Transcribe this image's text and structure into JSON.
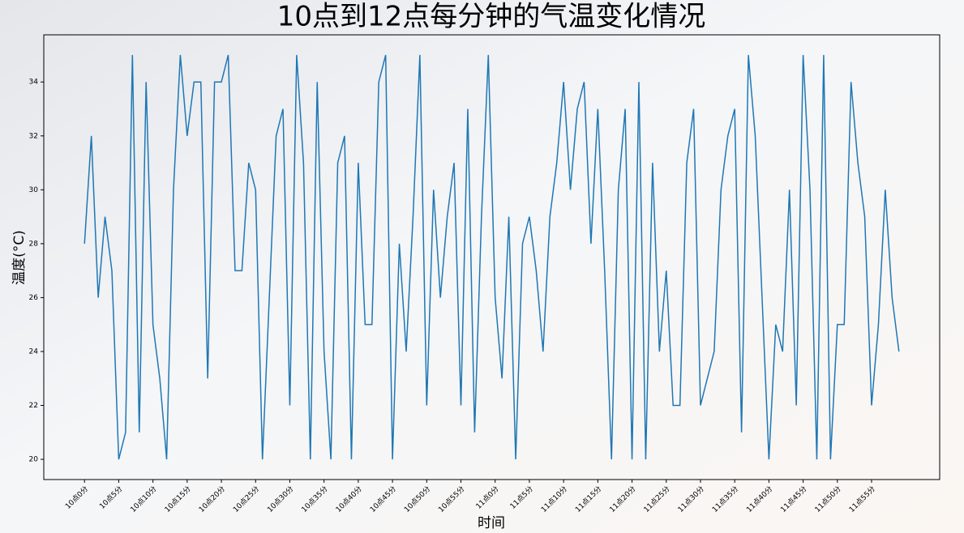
{
  "chart_data": {
    "type": "line",
    "title": "10点到12点每分钟的气温变化情况",
    "xlabel": "时间",
    "ylabel": "温度(°C)",
    "categories": [
      "10点0分",
      null,
      null,
      null,
      null,
      "10点5分",
      null,
      null,
      null,
      null,
      "10点10分",
      null,
      null,
      null,
      null,
      "10点15分",
      null,
      null,
      null,
      null,
      "10点20分",
      null,
      null,
      null,
      null,
      "10点25分",
      null,
      null,
      null,
      null,
      "10点30分",
      null,
      null,
      null,
      null,
      "10点35分",
      null,
      null,
      null,
      null,
      "10点40分",
      null,
      null,
      null,
      null,
      "10点45分",
      null,
      null,
      null,
      null,
      "10点50分",
      null,
      null,
      null,
      null,
      "10点55分",
      null,
      null,
      null,
      null,
      "11点0分",
      null,
      null,
      null,
      null,
      "11点5分",
      null,
      null,
      null,
      null,
      "11点10分",
      null,
      null,
      null,
      null,
      "11点15分",
      null,
      null,
      null,
      null,
      "11点20分",
      null,
      null,
      null,
      null,
      "11点25分",
      null,
      null,
      null,
      null,
      "11点30分",
      null,
      null,
      null,
      null,
      "11点35分",
      null,
      null,
      null,
      null,
      "11点40分",
      null,
      null,
      null,
      null,
      "11点45分",
      null,
      null,
      null,
      null,
      "11点50分",
      null,
      null,
      null,
      null,
      "11点55分",
      null,
      null,
      null,
      null
    ],
    "series": [
      {
        "color": "#1f77b4",
        "values": [
          28,
          32,
          26,
          29,
          27,
          20,
          21,
          35,
          21,
          34,
          25,
          23,
          20,
          30,
          35,
          32,
          34,
          34,
          23,
          34,
          34,
          35,
          27,
          27,
          31,
          30,
          20,
          26,
          32,
          33,
          22,
          35,
          31,
          20,
          34,
          24,
          20,
          31,
          32,
          20,
          31,
          25,
          25,
          34,
          35,
          20,
          28,
          24,
          29,
          35,
          22,
          30,
          26,
          29,
          31,
          22,
          33,
          21,
          29,
          35,
          26,
          23,
          29,
          20,
          28,
          29,
          27,
          24,
          29,
          31,
          34,
          30,
          33,
          34,
          28,
          33,
          27,
          20,
          30,
          33,
          20,
          34,
          20,
          31,
          24,
          27,
          22,
          22,
          31,
          33,
          22,
          23,
          24,
          30,
          32,
          33,
          21,
          35,
          32,
          26,
          20,
          25,
          24,
          30,
          22,
          35,
          30,
          20,
          35,
          20,
          25,
          25,
          34,
          31,
          29,
          22,
          25,
          30,
          26,
          24
        ]
      }
    ],
    "ylim": [
      19.25,
      35.75
    ],
    "yticks": [
      20,
      22,
      24,
      26,
      28,
      30,
      32,
      34
    ]
  }
}
